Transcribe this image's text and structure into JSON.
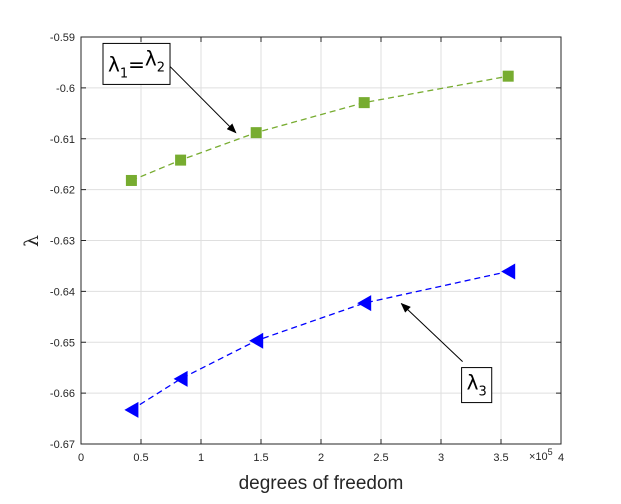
{
  "chart_data": {
    "type": "line",
    "xlabel": "degrees of freedom",
    "ylabel": "λ",
    "x_exponent_label": "×10",
    "x_exponent_power": "5",
    "xlim": [
      0,
      4
    ],
    "ylim": [
      -0.67,
      -0.59
    ],
    "xticks": [
      0,
      0.5,
      1,
      1.5,
      2,
      2.5,
      3,
      3.5,
      4
    ],
    "xtick_labels": [
      "0",
      "0.5",
      "1",
      "1.5",
      "2",
      "2.5",
      "3",
      "3.5",
      "4"
    ],
    "yticks": [
      -0.67,
      -0.66,
      -0.65,
      -0.64,
      -0.63,
      -0.62,
      -0.61,
      -0.6,
      -0.59
    ],
    "ytick_labels": [
      "-0.67",
      "-0.66",
      "-0.65",
      "-0.64",
      "-0.63",
      "-0.62",
      "-0.61",
      "-0.6",
      "-0.59"
    ],
    "grid": true,
    "series": [
      {
        "color": "#77ac30",
        "marker": "square",
        "line": "dashed",
        "x": [
          0.42,
          0.83,
          1.46,
          2.36,
          3.56
        ],
        "y": [
          -0.6182,
          -0.6142,
          -0.6088,
          -0.6029,
          -0.5977
        ]
      },
      {
        "color": "#0000ff",
        "marker": "triangle-left",
        "line": "dashed",
        "x": [
          0.42,
          0.83,
          1.46,
          2.36,
          3.56
        ],
        "y": [
          -0.6633,
          -0.6572,
          -0.6497,
          -0.6423,
          -0.6361
        ]
      }
    ],
    "annotations": [
      {
        "base": "λ",
        "sub1": "1",
        "eq": "=",
        "sub2": "2",
        "arrow_from": [
          0.7,
          -0.5948
        ],
        "arrow_to": [
          1.29,
          -0.6088
        ]
      },
      {
        "base": "λ",
        "sub1": "3",
        "arrow_from": [
          3.18,
          -0.6538
        ],
        "arrow_to": [
          2.67,
          -0.6424
        ]
      }
    ]
  }
}
